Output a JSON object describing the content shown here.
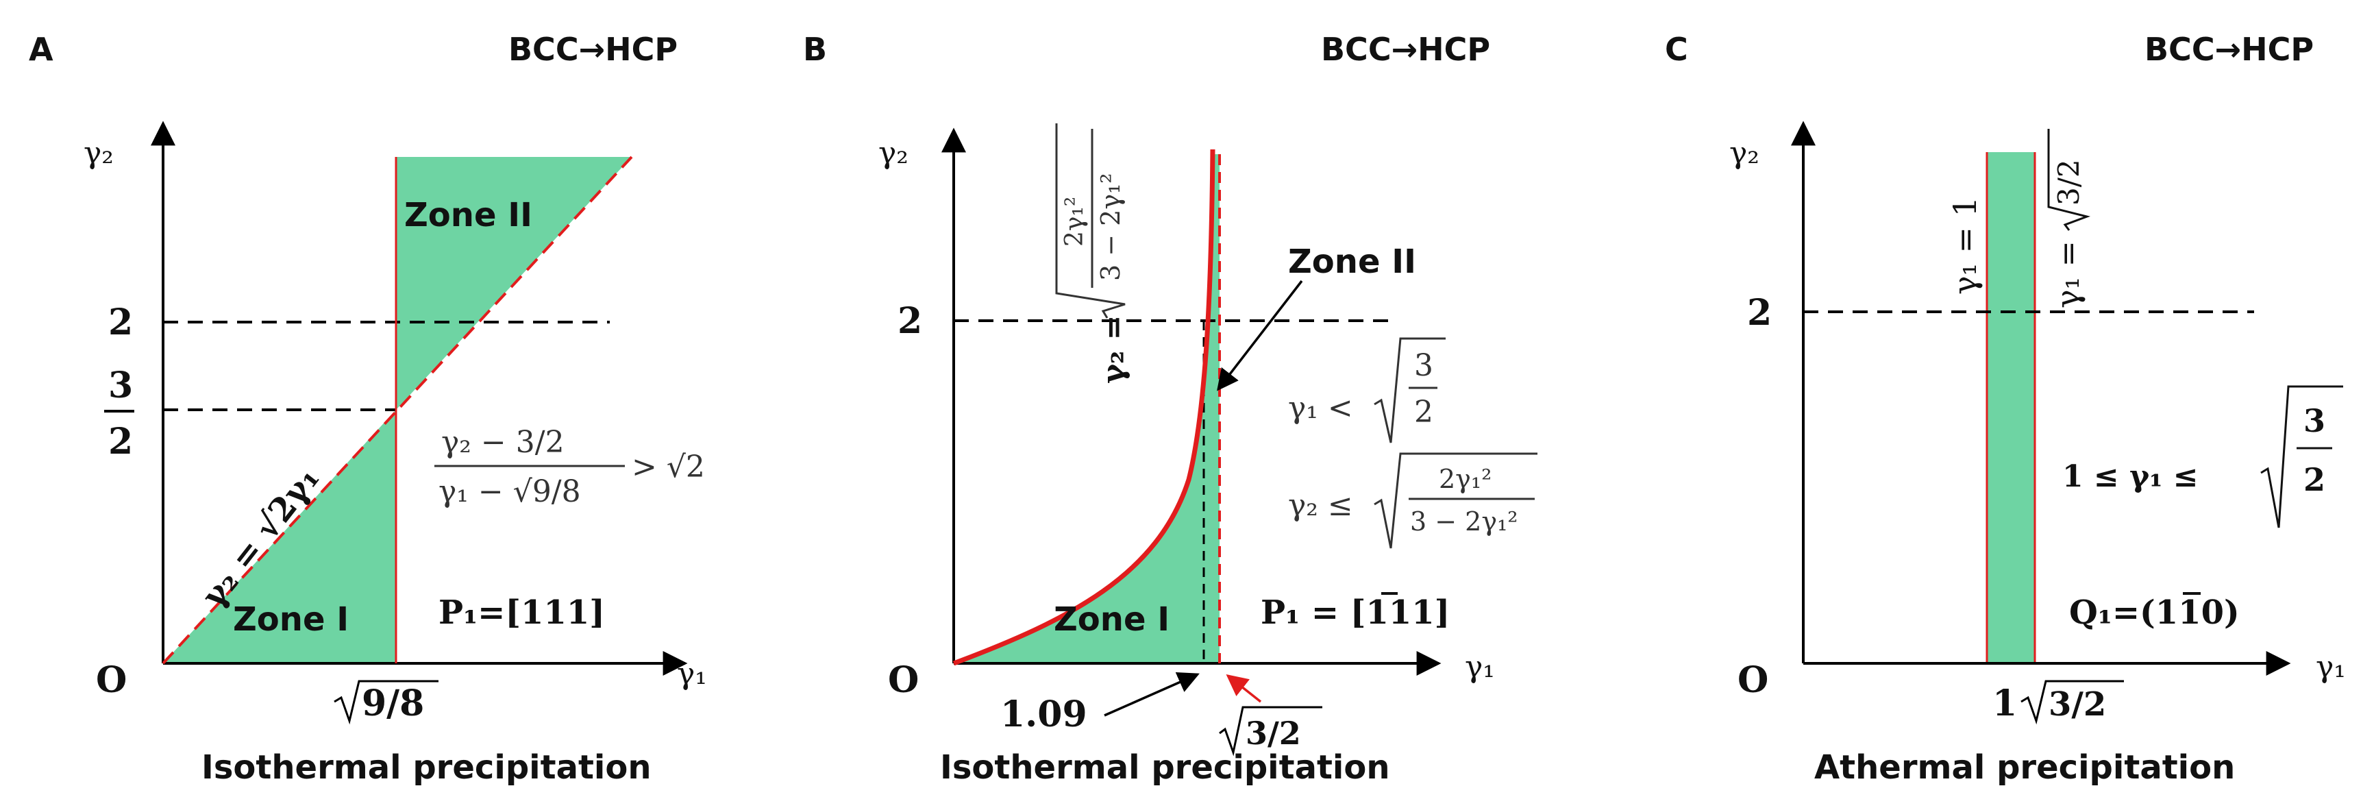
{
  "panel_a": {
    "letter": "A",
    "transition": "BCC→HCP",
    "y_axis": "γ₂",
    "x_axis": "γ₁",
    "origin": "O",
    "tick_2": "2",
    "tick_3": "3",
    "tick_den": "2",
    "x_tick": "9/8",
    "zone_1": "Zone I",
    "zone_2": "Zone II",
    "line_eq": "γ₂ = √2γ₁",
    "ineq_num": "γ₂ − 3/2",
    "ineq_den": "γ₁ − √9/8",
    "ineq_rhs": "> √2",
    "plane": "P₁=[111]",
    "caption": "Isothermal precipitation"
  },
  "panel_b": {
    "letter": "B",
    "transition": "BCC→HCP",
    "y_axis": "γ₂",
    "x_axis": "γ₁",
    "origin": "O",
    "tick_2": "2",
    "curve_lhs": "γ₂ =",
    "curve_num": "2γ₁²",
    "curve_den": "3 − 2γ₁²",
    "zone_1": "Zone I",
    "zone_2": "Zone II",
    "cond_1": "γ₁ <",
    "cond_1_num": "3",
    "cond_1_den": "2",
    "cond_2": "γ₂ ≤",
    "cond_2_num": "2γ₁²",
    "cond_2_den": "3 − 2γ₁²",
    "plane_pre": "P₁ = [",
    "plane_bar": "1",
    "plane_post": "11]",
    "x_tick_1": "1.09",
    "x_tick_2": "3/2",
    "caption": "Isothermal precipitation"
  },
  "panel_c": {
    "letter": "C",
    "transition": "BCC→HCP",
    "y_axis": "γ₂",
    "x_axis": "γ₁",
    "origin": "O",
    "tick_2": "2",
    "line_1": "γ₁ = 1",
    "line_2_lhs": "γ₁ =",
    "line_2_rad": "3/2",
    "range_lhs": "1 ≤ γ₁ ≤",
    "range_num": "3",
    "range_den": "2",
    "plane_pre": "Q₁=(1",
    "plane_bar": "1",
    "plane_post": "0)",
    "x_tick_1": "1",
    "x_tick_2": "3/2",
    "caption": "Athermal precipitation"
  },
  "colors": {
    "fill": "#6ed4a3",
    "red": "#e11d1d",
    "axis": "#000000"
  }
}
